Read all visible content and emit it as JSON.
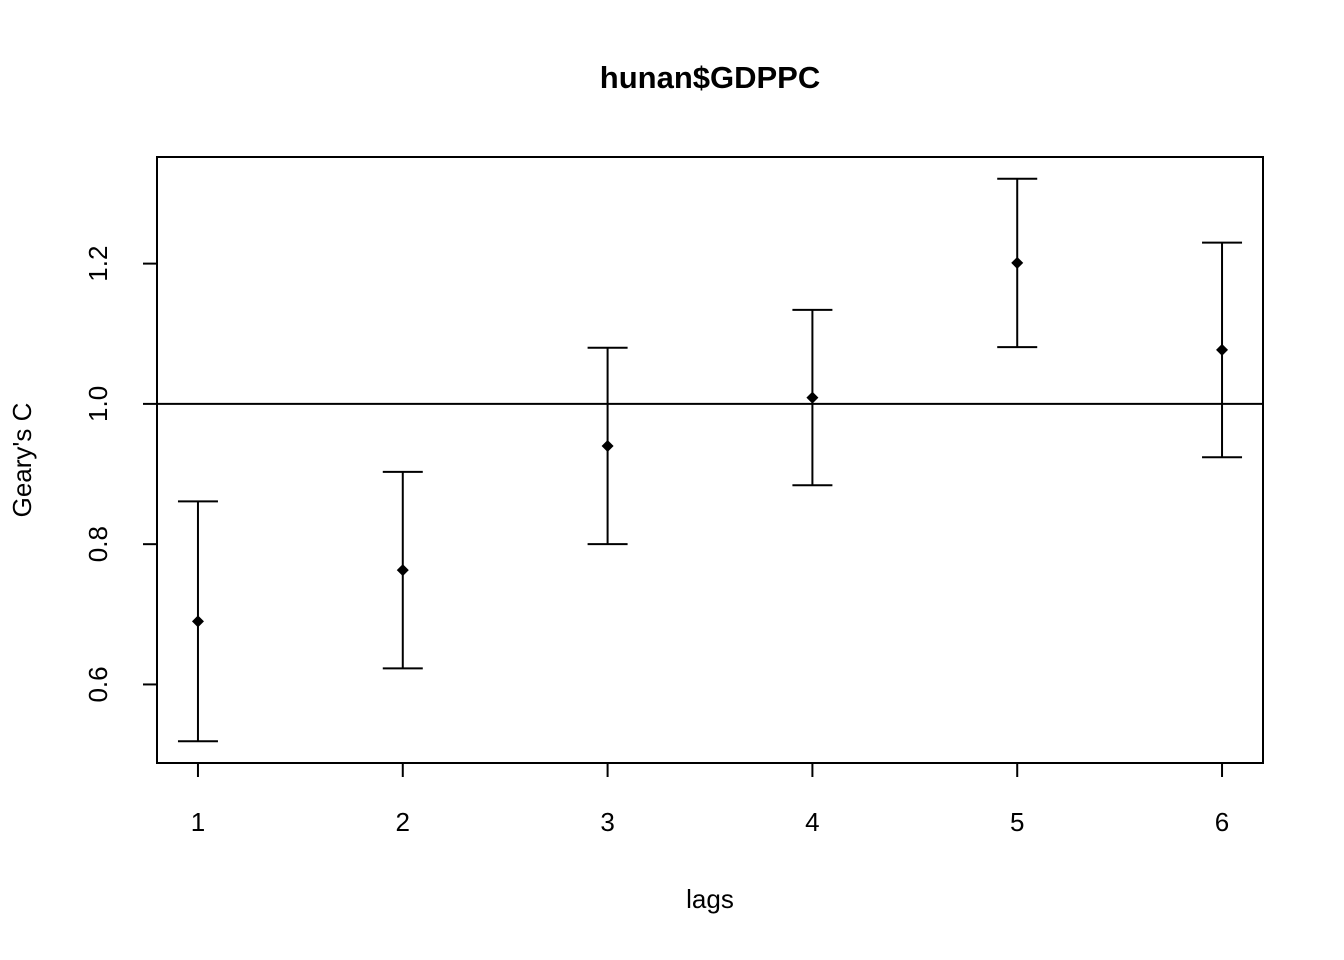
{
  "chart_data": {
    "type": "errorbar",
    "title": "hunan$GDPPC",
    "x_label": "lags",
    "y_label": "Geary's C",
    "x": [
      1,
      2,
      3,
      4,
      5,
      6
    ],
    "values": [
      0.69,
      0.763,
      0.94,
      1.009,
      1.201,
      1.077
    ],
    "errors": [
      0.171,
      0.14,
      0.14,
      0.125,
      0.12,
      0.153
    ],
    "color": "#000000",
    "hline": 1,
    "xlim": [
      0.8,
      6.2
    ],
    "xticks": [
      1,
      2,
      3,
      4,
      5,
      6
    ],
    "ylim": [
      0.488,
      1.352
    ],
    "yticks": [
      0.6,
      0.8,
      {
        "value": 1,
        "label": "1.0"
      },
      1.2
    ],
    "grid": false
  }
}
